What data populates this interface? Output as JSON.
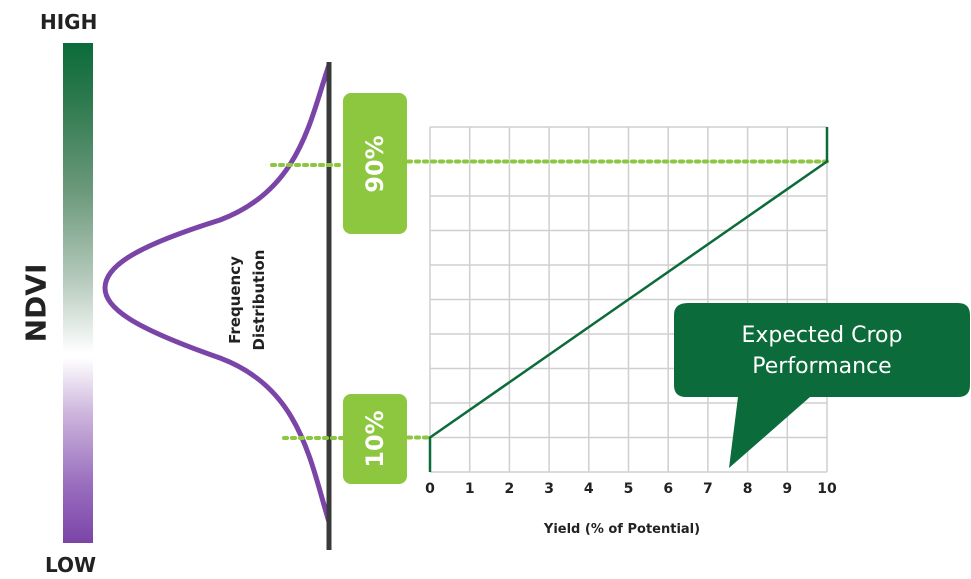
{
  "scale": {
    "high_label": "HIGH",
    "low_label": "LOW",
    "ndvi_label": "NDVI"
  },
  "distribution": {
    "label_line1": "Frequency",
    "label_line2": "Distribution",
    "percentile_high": "90%",
    "percentile_low": "10%"
  },
  "callout": {
    "line1": "Expected Crop",
    "line2": "Performance"
  },
  "colors": {
    "dark_green": "#0b6b3a",
    "light_green": "#8dc63f",
    "purple": "#7b45a8",
    "grid": "#cfcfcf"
  },
  "chart_data": {
    "type": "line",
    "xlabel": "Yield (% of Potential)",
    "ylabel": "",
    "title": "",
    "x_ticks": [
      "0",
      "1",
      "2",
      "3",
      "4",
      "5",
      "6",
      "7",
      "8",
      "9",
      "10"
    ],
    "xlim": [
      0,
      10
    ],
    "ylim": [
      0,
      10
    ],
    "grid": true,
    "series": [
      {
        "x": [
          0,
          10
        ],
        "y": [
          1,
          9
        ]
      }
    ]
  }
}
